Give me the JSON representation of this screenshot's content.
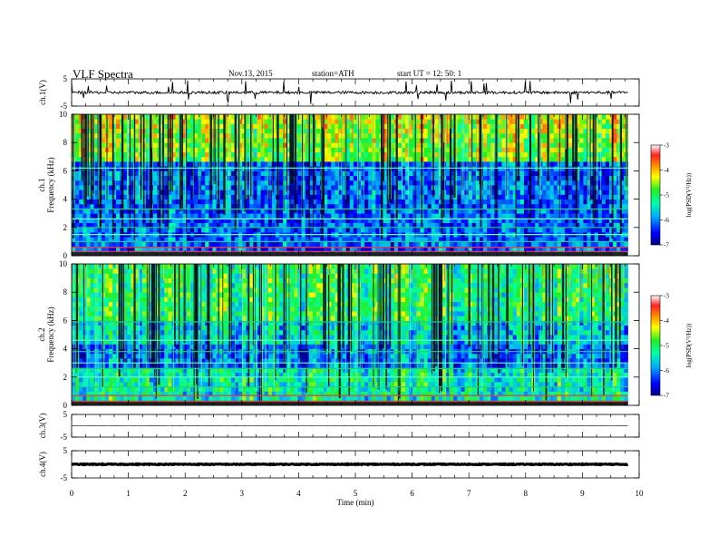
{
  "header": {
    "title": "VLF  Spectra",
    "date": "Nov.13,  2015",
    "station": "station=ATH",
    "start": "start  UT  =   12: 50: 1"
  },
  "chart_data": [
    {
      "type": "line",
      "panel": "ch1-waveform",
      "ylabel": "ch.1(V)",
      "ylim": [
        -5,
        5
      ],
      "yticks": [
        "5",
        "-5"
      ],
      "xlim": [
        0,
        10
      ],
      "description_values": {
        "baseline_v": 0.0,
        "amplitude_v": 1.0,
        "end_min": 9.8
      }
    },
    {
      "type": "heatmap",
      "panel": "ch1-spectrogram",
      "ylabel": "ch.1\nFrequency (kHz)",
      "ylim": [
        0,
        10
      ],
      "yticks": [
        "0",
        "2",
        "4",
        "6",
        "8",
        "10"
      ],
      "xlim": [
        0,
        10
      ],
      "data_end_min": 9.8,
      "colorbar": {
        "label": "log(PSD(V²/Hz))",
        "range": [
          -7,
          -3
        ],
        "ticks": [
          "-3",
          "-4",
          "-5",
          "-6",
          "-7"
        ]
      },
      "bands_khz": [
        0.3,
        0.6,
        1.0,
        1.5,
        2.0,
        2.6,
        3.3,
        6.2
      ]
    },
    {
      "type": "heatmap",
      "panel": "ch2-spectrogram",
      "ylabel": "ch.2\nFrequency (kHz)",
      "ylim": [
        0,
        10
      ],
      "yticks": [
        "0",
        "2",
        "4",
        "6",
        "8",
        "10"
      ],
      "xlim": [
        0,
        10
      ],
      "data_end_min": 9.8,
      "colorbar": {
        "label": "log(PSD(V²/Hz))",
        "range": [
          -7,
          -3
        ],
        "ticks": [
          "-3",
          "-4",
          "-5",
          "-6",
          "-7"
        ]
      },
      "bands_khz": [
        0.3,
        0.7,
        1.3,
        2.0,
        2.6,
        3.0,
        3.8,
        4.6,
        5.9
      ]
    },
    {
      "type": "line",
      "panel": "ch3-waveform",
      "ylabel": "ch.3(V)",
      "ylim": [
        -5,
        5
      ],
      "yticks": [
        "5",
        "-5"
      ],
      "xlim": [
        0,
        10
      ],
      "description_values": {
        "baseline_v": 0.0,
        "amplitude_v": 0.1,
        "end_min": 9.8
      }
    },
    {
      "type": "line",
      "panel": "ch4-waveform",
      "ylabel": "ch.4(V)",
      "ylim": [
        -5,
        5
      ],
      "yticks": [
        "5",
        "-5"
      ],
      "xlim": [
        0,
        10
      ],
      "xlabel": "Time  (min)",
      "xticks": [
        "0",
        "1",
        "2",
        "3",
        "4",
        "5",
        "6",
        "7",
        "8",
        "9",
        "10"
      ],
      "description_values": {
        "baseline_v": 0.0,
        "amplitude_v": 0.3,
        "end_min": 9.8
      }
    }
  ]
}
